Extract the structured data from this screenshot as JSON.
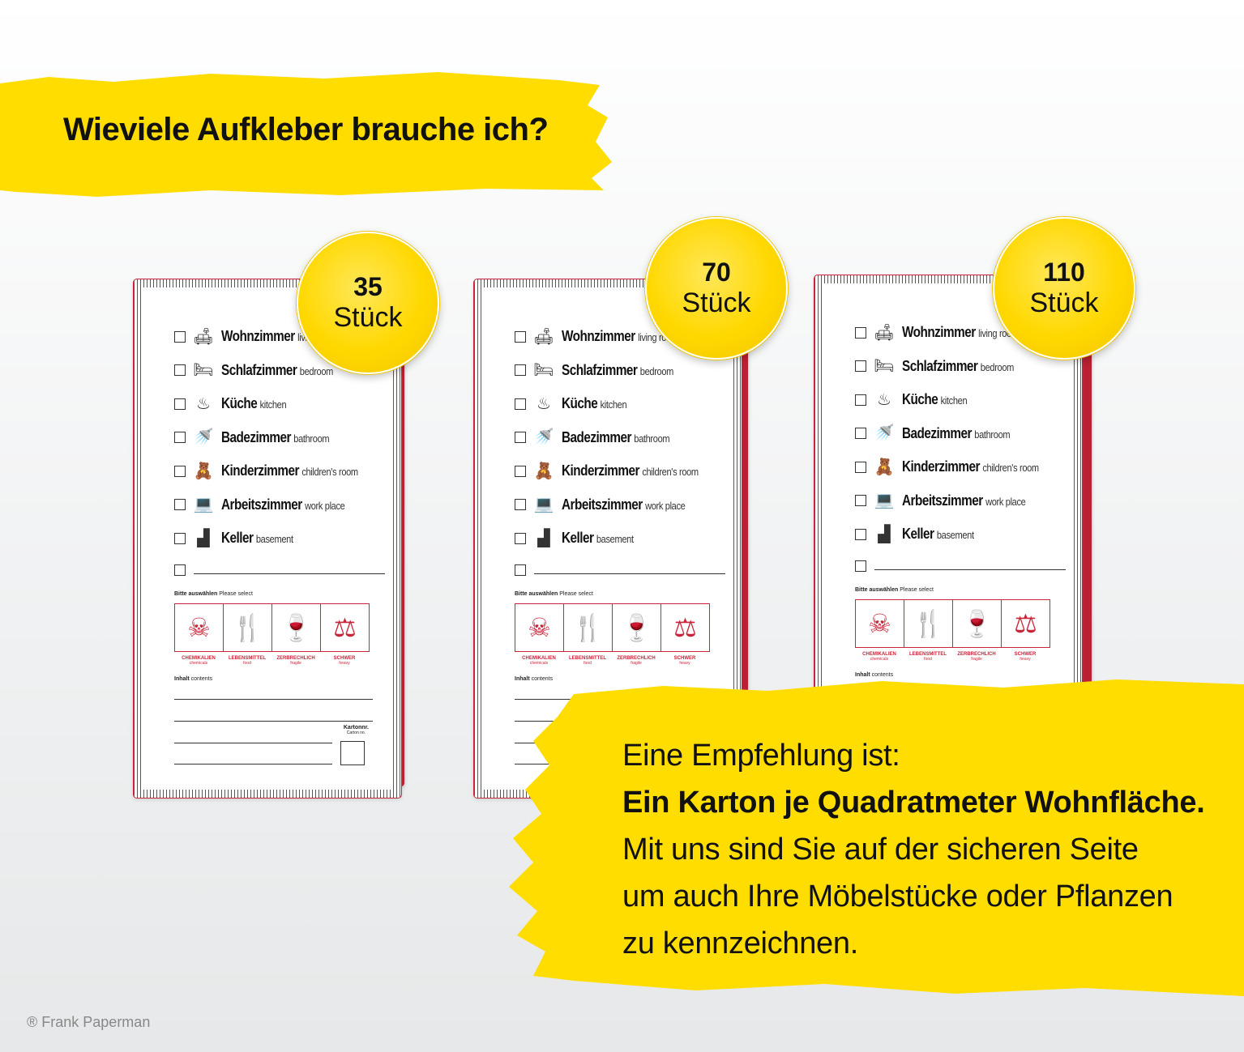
{
  "headline": "Wieviele Aufkleber brauche ich?",
  "sticker": {
    "rooms": [
      {
        "de": "Wohnzimmer",
        "en": "living room",
        "icon": "sofa-icon",
        "glyph": "🛋"
      },
      {
        "de": "Schlafzimmer",
        "en": "bedroom",
        "icon": "bed-icon",
        "glyph": "🛏"
      },
      {
        "de": "Küche",
        "en": "kitchen",
        "icon": "chef-hat-icon",
        "glyph": "♨"
      },
      {
        "de": "Badezimmer",
        "en": "bathroom",
        "icon": "shower-icon",
        "glyph": "🚿"
      },
      {
        "de": "Kinderzimmer",
        "en": "children's room",
        "icon": "teddy-bear-icon",
        "glyph": "🧸"
      },
      {
        "de": "Arbeitszimmer",
        "en": "work place",
        "icon": "laptop-icon",
        "glyph": "💻"
      },
      {
        "de": "Keller",
        "en": "basement",
        "icon": "stairs-icon",
        "glyph": "▟"
      }
    ],
    "select_title": "Bitte auswählen",
    "select_title_en": "Please select",
    "warnings": [
      {
        "de": "CHEMIKALIEN",
        "en": "chemicals",
        "icon": "skull-crossbones-icon",
        "glyph": "☠"
      },
      {
        "de": "LEBENSMITTEL",
        "en": "food",
        "icon": "glass-fork-icon",
        "glyph": "🍴"
      },
      {
        "de": "ZERBRECHLICH",
        "en": "fragile",
        "icon": "broken-glass-icon",
        "glyph": "🍷"
      },
      {
        "de": "SCHWER",
        "en": "heavy",
        "icon": "kg-weight-icon",
        "glyph": "⚖"
      }
    ],
    "contents_label": "Inhalt",
    "contents_label_en": "contents",
    "carton_label": "Kartonnr.",
    "carton_label_en": "Carton no."
  },
  "badges": [
    {
      "count": "35",
      "unit": "Stück"
    },
    {
      "count": "70",
      "unit": "Stück"
    },
    {
      "count": "110",
      "unit": "Stück"
    }
  ],
  "recommendation": {
    "line1": "Eine Empfehlung ist:",
    "line2": "Ein Karton je Quadratmeter Wohnfläche.",
    "line3": "Mit uns sind Sie auf der sicheren Seite",
    "line4": "um auch Ihre Möbelstücke oder Pflanzen",
    "line5": "zu kennzeichnen."
  },
  "copyright": "® Frank Paperman",
  "colors": {
    "accent_yellow": "#ffdd00",
    "sticker_red": "#c9253a"
  }
}
